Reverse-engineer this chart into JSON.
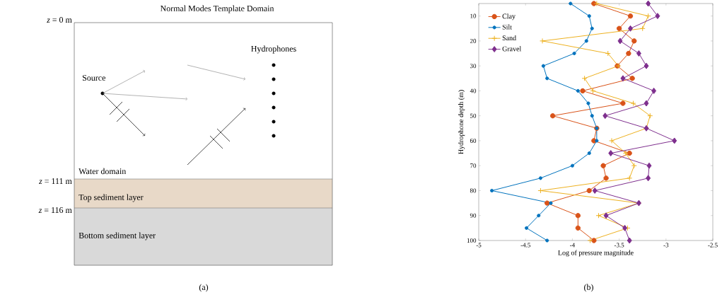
{
  "chart_data": [
    {
      "type": "other",
      "title": "Normal Modes Template Domain",
      "annotations": [
        "*z* = 0 m",
        "*z* = 111 m",
        "*z* = 116 m",
        "Source",
        "Hydrophones",
        "Water domain",
        "Top sediment layer",
        "Bottom sediment layer",
        "(a)"
      ]
    },
    {
      "type": "line",
      "xlabel": "Log of pressure magnitude",
      "ylabel": "Hydrophone depth (m)",
      "xlim": [
        -5,
        -2.5
      ],
      "xticks": [
        -5,
        -4.5,
        -4,
        -3.5,
        -3,
        -2.5
      ],
      "ylim": [
        100,
        5
      ],
      "yticks": [
        10,
        20,
        30,
        40,
        50,
        60,
        70,
        80,
        90,
        100
      ],
      "legend": "top left",
      "grid": false,
      "line_style": "solid",
      "annotations": [
        "(b)"
      ],
      "series": [
        {
          "name": "Clay",
          "color": "#d95319",
          "marker": "circle",
          "x": [
            -3.77,
            -3.38,
            -3.5,
            -3.34,
            -3.4,
            -3.52,
            -3.36,
            -3.89,
            -3.46,
            -4.21,
            -3.74,
            -3.77,
            -3.39,
            -3.67,
            -3.64,
            -3.82,
            -4.27,
            -3.94,
            -3.94,
            -3.77
          ],
          "values": [
            5,
            10,
            15,
            20,
            25,
            30,
            35,
            40,
            45,
            50,
            55,
            60,
            65,
            70,
            75,
            80,
            85,
            90,
            95,
            100
          ]
        },
        {
          "name": "Silt",
          "color": "#0072bd",
          "marker": "circle",
          "x": [
            -4.02,
            -3.82,
            -3.79,
            -3.85,
            -3.98,
            -4.31,
            -4.27,
            -3.94,
            -3.83,
            -3.79,
            -3.74,
            -3.74,
            -3.82,
            -4.0,
            -4.34,
            -4.86,
            -4.23,
            -4.36,
            -4.49,
            -4.27
          ],
          "values": [
            5,
            10,
            15,
            20,
            25,
            30,
            35,
            40,
            45,
            50,
            55,
            60,
            65,
            70,
            75,
            80,
            85,
            90,
            95,
            100
          ]
        },
        {
          "name": "Sand",
          "color": "#edb120",
          "marker": "cross",
          "x": [
            -3.74,
            -3.19,
            -3.25,
            -4.32,
            -3.62,
            -3.51,
            -3.87,
            -3.78,
            -3.35,
            -3.17,
            -3.21,
            -3.58,
            -3.43,
            -3.34,
            -3.39,
            -4.34,
            -3.29,
            -3.72,
            -3.41,
            -3.81
          ],
          "values": [
            5,
            10,
            15,
            20,
            25,
            30,
            35,
            40,
            45,
            50,
            55,
            60,
            65,
            70,
            75,
            80,
            85,
            90,
            95,
            100
          ]
        },
        {
          "name": "Gravel",
          "color": "#7e2f8e",
          "marker": "diamond",
          "x": [
            -3.19,
            -3.09,
            -3.38,
            -3.49,
            -3.29,
            -3.21,
            -3.46,
            -3.13,
            -3.21,
            -3.65,
            -3.21,
            -2.91,
            -3.59,
            -3.18,
            -3.19,
            -3.76,
            -3.29,
            -3.64,
            -3.44,
            -3.39
          ],
          "values": [
            5,
            10,
            15,
            20,
            25,
            30,
            35,
            40,
            45,
            50,
            55,
            60,
            65,
            70,
            75,
            80,
            85,
            90,
            95,
            100
          ]
        }
      ]
    }
  ]
}
